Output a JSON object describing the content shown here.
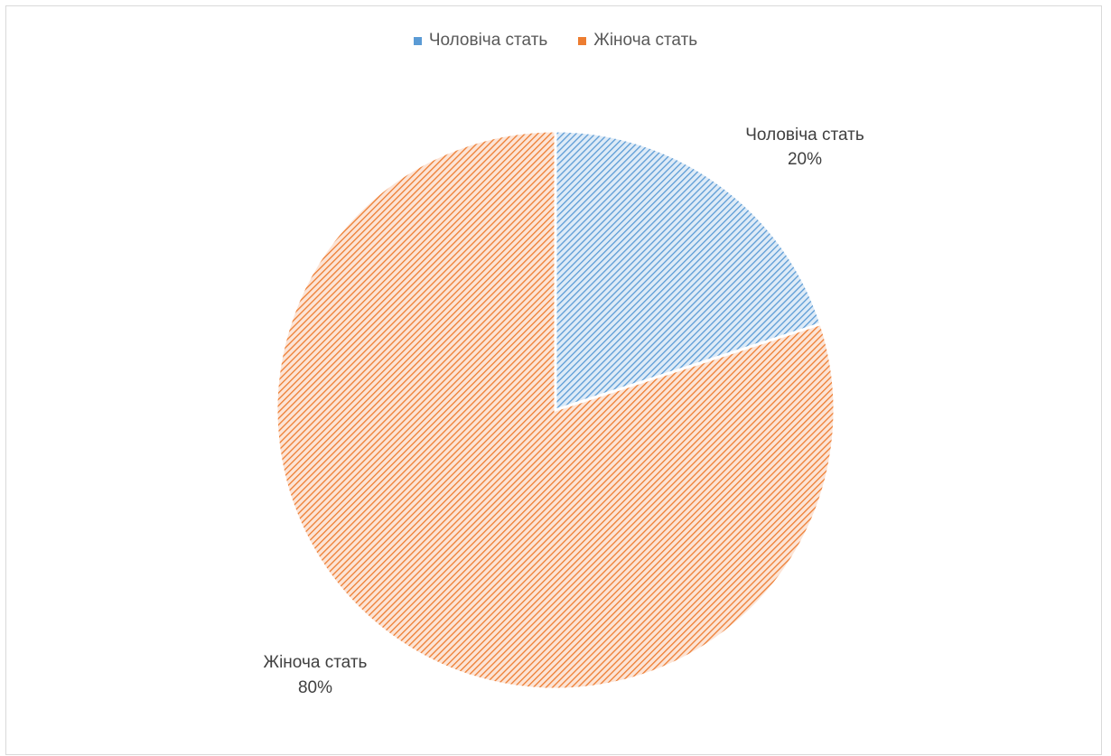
{
  "chart_data": {
    "type": "pie",
    "categories": [
      "Чоловіча стать",
      "Жіноча стать"
    ],
    "values": [
      20,
      80
    ],
    "colors": [
      "#5b9bd5",
      "#ed7d31"
    ],
    "fill_pattern": "diagonal-hatch",
    "title": "",
    "legend_position": "top",
    "data_labels": [
      {
        "category": "Чоловіча стать",
        "value": "20%"
      },
      {
        "category": "Жіноча стать",
        "value": "80%"
      }
    ]
  },
  "legend": {
    "items": [
      {
        "label": "Чоловіча стать",
        "color": "#5b9bd5"
      },
      {
        "label": "Жіноча стать",
        "color": "#ed7d31"
      }
    ]
  }
}
